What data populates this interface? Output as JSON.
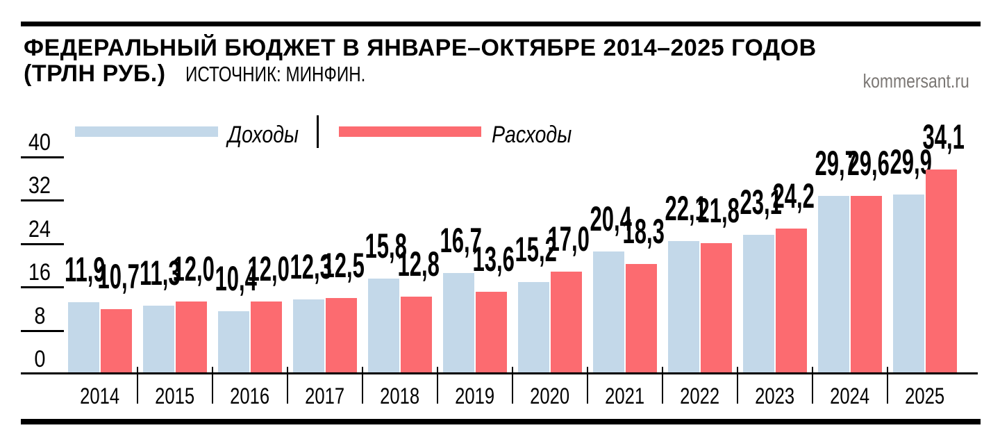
{
  "header": {
    "title_line1": "ФЕДЕРАЛЬНЫЙ БЮДЖЕТ В ЯНВАРЕ–ОКТЯБРЕ 2014–2025 ГОДОВ",
    "title_unit": "(ТРЛН РУБ.)",
    "source": "ИСТОЧНИК: МИНФИН.",
    "site": "kommersant.ru"
  },
  "legend": {
    "revenue_label": "Доходы",
    "expense_label": "Расходы"
  },
  "colors": {
    "revenue": "#c3d8e9",
    "expense": "#fc6b70",
    "rule_black": "#000000",
    "site_gray": "#7b7774"
  },
  "chart_data": {
    "type": "bar",
    "title": "ФЕДЕРАЛЬНЫЙ БЮДЖЕТ В ЯНВАРЕ–ОКТЯБРЕ 2014–2025 ГОДОВ (ТРЛН РУБ.)",
    "source": "ИСТОЧНИК: МИНФИН.",
    "unit": "трлн руб.",
    "categories": [
      "2014",
      "2015",
      "2016",
      "2017",
      "2018",
      "2019",
      "2020",
      "2021",
      "2022",
      "2023",
      "2024",
      "2025"
    ],
    "series": [
      {
        "name": "Доходы",
        "color": "#c3d8e9",
        "values": [
          11.9,
          11.3,
          10.4,
          12.3,
          15.8,
          16.7,
          15.2,
          20.4,
          22.1,
          23.1,
          29.7,
          29.9
        ]
      },
      {
        "name": "Расходы",
        "color": "#fc6b70",
        "values": [
          10.7,
          12.0,
          12.0,
          12.5,
          12.8,
          13.6,
          17.0,
          18.3,
          21.8,
          24.2,
          29.6,
          34.1
        ]
      }
    ],
    "y_ticks": [
      40,
      32,
      24,
      16,
      8,
      0
    ],
    "ylim": [
      0,
      40
    ],
    "grid": false,
    "legend_position": "top",
    "value_labels": true,
    "decimal_separator": ","
  }
}
